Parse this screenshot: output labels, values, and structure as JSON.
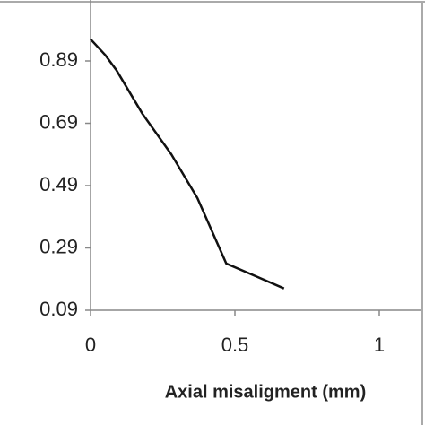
{
  "chart_data": {
    "type": "line",
    "x_label": "Axial misaligment (mm)",
    "x": [
      0,
      0.05,
      0.09,
      0.18,
      0.28,
      0.37,
      0.47,
      0.57,
      0.67
    ],
    "series": [
      {
        "color": "#111111",
        "values": [
          0.96,
          0.91,
          0.86,
          0.72,
          0.59,
          0.45,
          0.24,
          0.2,
          0.16
        ]
      }
    ],
    "xlim": [
      0,
      1
    ],
    "xticks": [
      0,
      0.5,
      1
    ],
    "ylim": [
      0.09,
      1.09
    ],
    "yticks": [
      0.09,
      0.29,
      0.49,
      0.69,
      0.89
    ],
    "grid": false
  }
}
